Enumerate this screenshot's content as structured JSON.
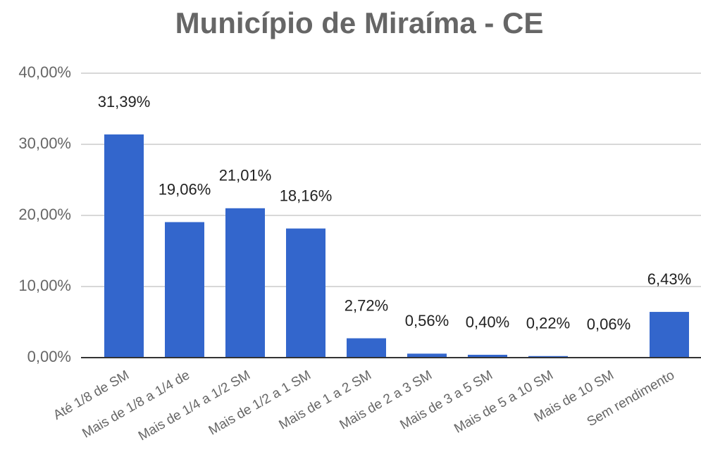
{
  "chart_data": {
    "type": "bar",
    "title": "Município de Miraíma - CE",
    "categories": [
      "Até 1/8 de SM",
      "Mais de 1/8 a 1/4 de",
      "Mais de 1/4 a 1/2 SM",
      "Mais de 1/2 a 1 SM",
      "Mais de 1 a 2 SM",
      "Mais de 2 a 3 SM",
      "Mais de 3 a 5 SM",
      "Mais de 5 a 10 SM",
      "Mais de 10 SM",
      "Sem rendimento"
    ],
    "values": [
      31.39,
      19.06,
      21.01,
      18.16,
      2.72,
      0.56,
      0.4,
      0.22,
      0.06,
      6.43
    ],
    "value_labels": [
      "31,39%",
      "19,06%",
      "21,01%",
      "18,16%",
      "2,72%",
      "0,56%",
      "0,40%",
      "0,22%",
      "0,06%",
      "6,43%"
    ],
    "color": "#3366cc",
    "ylim": [
      0,
      40
    ],
    "yticks": [
      {
        "value": 0,
        "label": "0,00%"
      },
      {
        "value": 10,
        "label": "10,00%"
      },
      {
        "value": 20,
        "label": "20,00%"
      },
      {
        "value": 30,
        "label": "30,00%"
      },
      {
        "value": 40,
        "label": "40,00%"
      }
    ],
    "grid": true
  }
}
